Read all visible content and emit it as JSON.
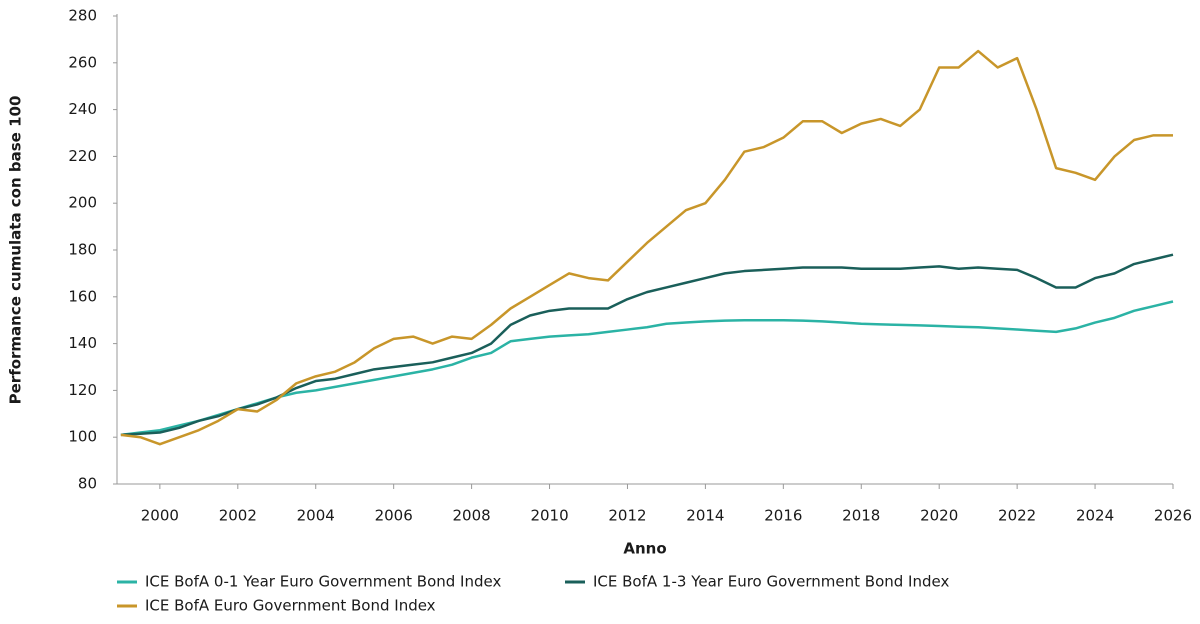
{
  "chart_data": {
    "type": "line",
    "y_label": "Performance cumulata con base 100",
    "x_label": "Anno",
    "x": [
      1999,
      1999.5,
      2000,
      2000.5,
      2001,
      2001.5,
      2002,
      2002.5,
      2003,
      2003.5,
      2004,
      2004.5,
      2005,
      2005.5,
      2006,
      2006.5,
      2007,
      2007.5,
      2008,
      2008.5,
      2009,
      2009.5,
      2010,
      2010.5,
      2011,
      2011.5,
      2012,
      2012.5,
      2013,
      2013.5,
      2014,
      2014.5,
      2015,
      2015.5,
      2016,
      2016.5,
      2017,
      2017.5,
      2018,
      2018.5,
      2019,
      2019.5,
      2020,
      2020.5,
      2021,
      2021.5,
      2022,
      2022.5,
      2023,
      2023.5,
      2024,
      2024.5,
      2025,
      2025.5,
      2026
    ],
    "series": [
      {
        "name": "ICE BofA 0-1 Year Euro Government Bond Index",
        "color": "#2bb3a5",
        "values": [
          101,
          102,
          103,
          105,
          107,
          109.5,
          112,
          114.5,
          117,
          119,
          120,
          121.5,
          123,
          124.5,
          126,
          127.5,
          129,
          131,
          134,
          136,
          141,
          142,
          143,
          143.5,
          144,
          145,
          146,
          147,
          148.5,
          149,
          149.5,
          149.8,
          150,
          150,
          150,
          149.8,
          149.5,
          149,
          148.5,
          148.2,
          148,
          147.8,
          147.5,
          147.2,
          147,
          146.5,
          146,
          145.5,
          145,
          146.5,
          149,
          151,
          154,
          156,
          158
        ]
      },
      {
        "name": "ICE BofA 1-3 Year Euro Government Bond Index",
        "color": "#1a5f5a",
        "values": [
          101,
          101.5,
          102,
          104,
          107,
          109,
          112,
          114,
          117,
          121,
          124,
          125,
          127,
          129,
          130,
          131,
          132,
          134,
          136,
          140,
          148,
          152,
          154,
          155,
          155,
          155,
          159,
          162,
          164,
          166,
          168,
          170,
          171,
          171.5,
          172,
          172.5,
          172.5,
          172.5,
          172,
          172,
          172,
          172.5,
          173,
          172,
          172.5,
          172,
          171.5,
          168,
          164,
          164,
          168,
          170,
          174,
          176,
          178
        ]
      },
      {
        "name": "ICE BofA Euro Government Bond Index",
        "color": "#c8962a",
        "values": [
          101,
          100,
          97,
          100,
          103,
          107,
          112,
          111,
          116,
          123,
          126,
          128,
          132,
          138,
          142,
          143,
          140,
          143,
          142,
          148,
          155,
          160,
          165,
          170,
          168,
          167,
          175,
          183,
          190,
          197,
          200,
          210,
          222,
          224,
          228,
          235,
          235,
          230,
          234,
          236,
          233,
          240,
          258,
          258,
          265,
          258,
          262,
          240,
          215,
          213,
          210,
          220,
          227,
          229,
          229
        ]
      }
    ],
    "xlim": [
      1998.9,
      2026
    ],
    "xticks": [
      2000,
      2002,
      2004,
      2006,
      2008,
      2010,
      2012,
      2014,
      2016,
      2018,
      2020,
      2022,
      2024,
      2026
    ],
    "ylim": [
      80,
      280
    ],
    "yticks": [
      80,
      100,
      120,
      140,
      160,
      180,
      200,
      220,
      240,
      260,
      280
    ],
    "grid": false
  }
}
